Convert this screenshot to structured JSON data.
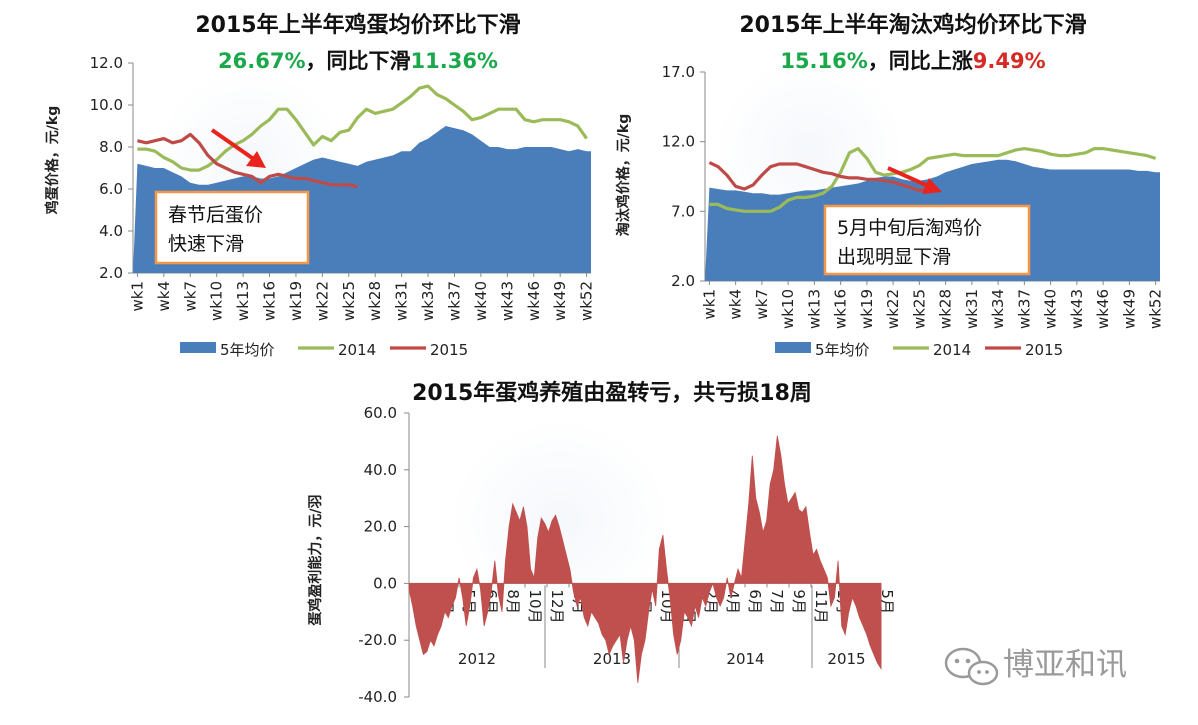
{
  "colors": {
    "area": "#4a7ebb",
    "line2014": "#9bbb59",
    "line2015": "#be4b48",
    "green_pct": "#1aa84b",
    "red_pct": "#d62b24",
    "profit_fill": "#c0504d",
    "annotation_border": "#f79646",
    "arrow": "#e8241c"
  },
  "watermark": {
    "text": "博亚和讯",
    "icon": "wechat-icon"
  },
  "chart_data": [
    {
      "type": "area+line",
      "title": "2015年上半年鸡蛋均价环比下滑",
      "subtitle": {
        "pct1": "26.67%",
        "mid": "，同比下滑",
        "pct2": "11.36%"
      },
      "ylabel": "鸡蛋价格，元/kg",
      "ylim": [
        2.0,
        12.0
      ],
      "yticks": [
        "2.0",
        "4.0",
        "6.0",
        "8.0",
        "10.0",
        "12.0"
      ],
      "x_tick_labels": [
        "wk1",
        "wk4",
        "wk7",
        "wk10",
        "wk13",
        "wk16",
        "wk19",
        "wk22",
        "wk25",
        "wk28",
        "wk31",
        "wk34",
        "wk37",
        "wk40",
        "wk43",
        "wk46",
        "wk49",
        "wk52"
      ],
      "legend": [
        "5年均价",
        "2014",
        "2015"
      ],
      "annotation": {
        "line1": "春节后蛋价",
        "line2": "快速下滑"
      },
      "series": [
        {
          "name": "5年均价",
          "values": [
            7.2,
            7.1,
            7.0,
            7.0,
            6.8,
            6.6,
            6.3,
            6.2,
            6.2,
            6.3,
            6.4,
            6.5,
            6.6,
            6.6,
            6.5,
            6.5,
            6.6,
            6.8,
            7.0,
            7.2,
            7.4,
            7.5,
            7.4,
            7.3,
            7.2,
            7.1,
            7.3,
            7.4,
            7.5,
            7.6,
            7.8,
            7.8,
            8.2,
            8.4,
            8.7,
            9.0,
            8.9,
            8.8,
            8.6,
            8.3,
            8.0,
            8.0,
            7.9,
            7.9,
            8.0,
            8.0,
            8.0,
            8.0,
            7.9,
            7.8,
            7.9,
            7.8
          ]
        },
        {
          "name": "2014",
          "values": [
            7.9,
            7.9,
            7.8,
            7.5,
            7.3,
            7.0,
            6.9,
            6.9,
            7.1,
            7.4,
            7.8,
            8.1,
            8.3,
            8.6,
            9.0,
            9.3,
            9.8,
            9.8,
            9.3,
            8.7,
            8.1,
            8.5,
            8.3,
            8.7,
            8.8,
            9.4,
            9.8,
            9.6,
            9.7,
            9.8,
            10.1,
            10.4,
            10.8,
            10.9,
            10.5,
            10.3,
            10.0,
            9.7,
            9.3,
            9.4,
            9.6,
            9.8,
            9.8,
            9.8,
            9.3,
            9.2,
            9.3,
            9.3,
            9.3,
            9.2,
            9.0,
            8.4
          ]
        },
        {
          "name": "2015",
          "values": [
            8.3,
            8.2,
            8.3,
            8.4,
            8.2,
            8.3,
            8.6,
            8.2,
            7.6,
            7.2,
            7.0,
            6.8,
            6.7,
            6.6,
            6.3,
            6.6,
            6.7,
            6.6,
            6.5,
            6.5,
            6.4,
            6.3,
            6.2,
            6.2,
            6.2,
            6.1
          ]
        }
      ]
    },
    {
      "type": "area+line",
      "title": "2015年上半年淘汰鸡均价环比下滑",
      "subtitle": {
        "pct1": "15.16%",
        "mid": "，同比上涨",
        "pct2": "9.49%"
      },
      "ylabel": "淘汰鸡价格，元/kg",
      "ylim": [
        2.0,
        17.0
      ],
      "yticks": [
        "2.0",
        "7.0",
        "12.0",
        "17.0"
      ],
      "x_tick_labels": [
        "wk1",
        "wk4",
        "wk7",
        "wk10",
        "wk13",
        "wk16",
        "wk19",
        "wk22",
        "wk25",
        "wk28",
        "wk31",
        "wk34",
        "wk37",
        "wk40",
        "wk43",
        "wk46",
        "wk49",
        "wk52"
      ],
      "legend": [
        "5年均价",
        "2014",
        "2015"
      ],
      "annotation": {
        "line1": "5月中旬后淘鸡价",
        "line2": "出现明显下滑"
      },
      "series": [
        {
          "name": "5年均价",
          "values": [
            8.7,
            8.6,
            8.5,
            8.5,
            8.4,
            8.3,
            8.3,
            8.2,
            8.2,
            8.3,
            8.4,
            8.5,
            8.5,
            8.6,
            8.7,
            8.8,
            8.9,
            9.0,
            9.2,
            9.4,
            9.5,
            9.5,
            9.3,
            9.2,
            9.2,
            9.3,
            9.5,
            9.8,
            10.0,
            10.2,
            10.4,
            10.5,
            10.6,
            10.7,
            10.7,
            10.6,
            10.4,
            10.2,
            10.1,
            10.0,
            10.0,
            10.0,
            10.0,
            10.0,
            10.0,
            10.0,
            10.0,
            10.0,
            10.0,
            9.9,
            9.9,
            9.8
          ]
        },
        {
          "name": "2014",
          "values": [
            7.5,
            7.5,
            7.2,
            7.1,
            7.0,
            7.0,
            7.0,
            7.0,
            7.3,
            7.8,
            8.0,
            8.0,
            8.1,
            8.3,
            8.8,
            9.8,
            11.2,
            11.5,
            10.8,
            9.8,
            9.6,
            9.7,
            9.8,
            10.0,
            10.3,
            10.8,
            10.9,
            11.0,
            11.1,
            11.0,
            11.0,
            11.0,
            11.0,
            11.0,
            11.2,
            11.4,
            11.5,
            11.4,
            11.3,
            11.1,
            11.0,
            11.0,
            11.1,
            11.2,
            11.5,
            11.5,
            11.4,
            11.3,
            11.2,
            11.1,
            11.0,
            10.8
          ]
        },
        {
          "name": "2015",
          "values": [
            10.5,
            10.2,
            9.6,
            8.8,
            8.6,
            8.9,
            9.6,
            10.2,
            10.4,
            10.4,
            10.4,
            10.2,
            10.0,
            9.8,
            9.7,
            9.5,
            9.4,
            9.4,
            9.3,
            9.3,
            9.2,
            9.1,
            8.9,
            8.7,
            8.5,
            8.6
          ]
        }
      ]
    },
    {
      "type": "area",
      "title": "2015年蛋鸡养殖由盈转亏，共亏损18周",
      "ylabel": "蛋鸡盈利能力，元/羽",
      "ylim": [
        -40.0,
        60.0
      ],
      "yticks": [
        "-40.0",
        "-20.0",
        "0.0",
        "20.0",
        "40.0",
        "60.0"
      ],
      "x_month_labels": [
        "1月",
        "3月",
        "5月",
        "6月",
        "8月",
        "10月",
        "12月",
        "2月",
        "4月",
        "6月",
        "8月",
        "10月",
        "12月",
        "2月",
        "4月",
        "6月",
        "7月",
        "9月",
        "11月",
        "1月",
        "3月",
        "5月"
      ],
      "year_labels": [
        "2012",
        "2013",
        "2014",
        "2015"
      ],
      "series": [
        {
          "name": "蛋鸡盈利能力",
          "values": [
            -2,
            -8,
            -15,
            -20,
            -25,
            -24,
            -20,
            -22,
            -18,
            -15,
            -10,
            -12,
            -8,
            -5,
            2,
            -5,
            -15,
            -8,
            2,
            5,
            -2,
            -15,
            -10,
            -3,
            8,
            -4,
            -10,
            8,
            20,
            28,
            25,
            22,
            27,
            20,
            5,
            2,
            16,
            23,
            21,
            18,
            22,
            24,
            20,
            15,
            10,
            5,
            -3,
            -8,
            -5,
            -12,
            -15,
            -10,
            -12,
            -14,
            -18,
            -20,
            -25,
            -22,
            -20,
            -18,
            -28,
            -20,
            -15,
            -20,
            -35,
            -25,
            -20,
            -10,
            -2,
            -8,
            12,
            17,
            5,
            -5,
            -18,
            -25,
            -20,
            -10,
            -12,
            -15,
            -8,
            -12,
            -5,
            -8,
            -3,
            0,
            -5,
            -8,
            -5,
            2,
            -5,
            0,
            5,
            2,
            15,
            28,
            45,
            30,
            25,
            18,
            22,
            35,
            40,
            52,
            45,
            35,
            28,
            30,
            32,
            26,
            25,
            27,
            18,
            10,
            12,
            8,
            5,
            2,
            -8,
            -5,
            8,
            -15,
            -18,
            -10,
            -5,
            -8,
            -12,
            -15,
            -18,
            -22,
            -25,
            -28,
            -30
          ]
        }
      ]
    }
  ]
}
